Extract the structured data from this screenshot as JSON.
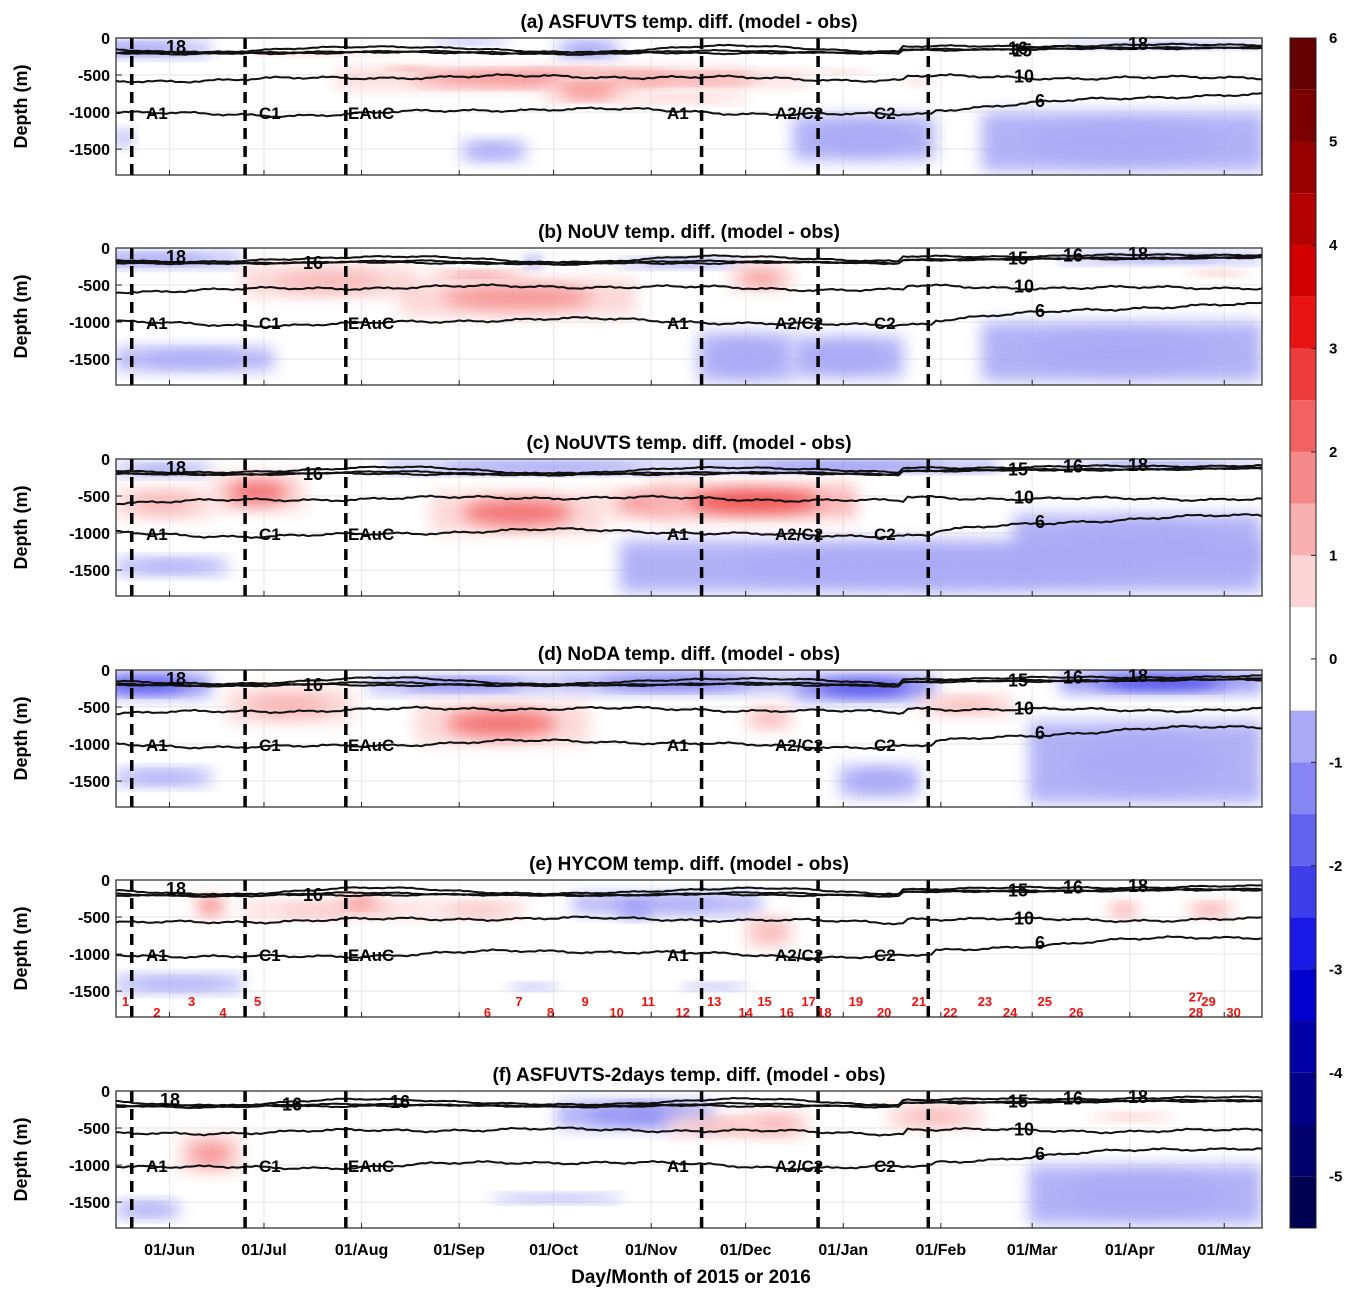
{
  "chart_data": {
    "type": "heatmap",
    "xlabel": "Day/Month of 2015 or 2016",
    "x_ticks": [
      "01/Jun",
      "01/Jul",
      "01/Aug",
      "01/Sep",
      "01/Oct",
      "01/Nov",
      "01/Dec",
      "01/Jan",
      "01/Feb",
      "01/Mar",
      "01/Apr",
      "01/May"
    ],
    "y_ticks": [
      "0",
      "-500",
      "-1000",
      "-1500"
    ],
    "ylabel": "Depth (m)",
    "ylim": [
      -1850,
      0
    ],
    "colorbar": {
      "ticks": [
        "6",
        "5",
        "4",
        "3",
        "2",
        "1",
        "0",
        "-1",
        "-2",
        "-3",
        "-4",
        "-5"
      ],
      "range": [
        -5.5,
        6
      ],
      "colors_positive": [
        "#fcd4d4",
        "#f9b0b0",
        "#f58a8a",
        "#f26262",
        "#ee3b3b",
        "#e81414",
        "#d40000",
        "#b30000",
        "#960000",
        "#7b0000",
        "#640000"
      ],
      "colors_negative": [
        "#a9a9f6",
        "#8585f3",
        "#6262ef",
        "#3e3eeb",
        "#1a1ae6",
        "#0000cc",
        "#0000a6",
        "#000088",
        "#00006d",
        "#000050"
      ]
    },
    "event_labels": [
      "A1",
      "C1",
      "EAuC",
      "A1",
      "A2/C2",
      "C2"
    ],
    "panels": [
      {
        "title": "(a) ASFUVTS temp. diff. (model - obs)",
        "contour_labels": [
          "18",
          "15",
          "16",
          "18",
          "10",
          "6"
        ],
        "warm": [
          [
            70,
            200,
            420,
            680,
            2
          ],
          [
            140,
            220,
            460,
            640,
            1.5
          ],
          [
            135,
            165,
            620,
            850,
            2
          ],
          [
            40,
            90,
            180,
            240,
            1
          ],
          [
            120,
            160,
            380,
            420,
            1.5
          ],
          [
            160,
            200,
            780,
            880,
            1
          ],
          [
            220,
            240,
            420,
            480,
            1
          ],
          [
            250,
            260,
            560,
            640,
            1
          ],
          [
            85,
            100,
            380,
            440,
            2.5
          ]
        ],
        "cool": [
          [
            -15,
            30,
            60,
            240,
            -1
          ],
          [
            140,
            160,
            60,
            260,
            -1.2
          ],
          [
            300,
            364,
            60,
            140,
            -1.5
          ],
          [
            100,
            125,
            20,
            90,
            -1
          ],
          [
            215,
            260,
            1050,
            1650,
            -0.9
          ],
          [
            275,
            365,
            1000,
            1800,
            -0.8
          ],
          [
            0,
            5,
            1250,
            1450,
            -0.8
          ],
          [
            110,
            130,
            1400,
            1650,
            -0.8
          ]
        ]
      },
      {
        "title": "(b) NoUV temp. diff. (model - obs)",
        "contour_labels": [
          "18",
          "16",
          "15",
          "16",
          "18",
          "10",
          "6"
        ],
        "warm": [
          [
            90,
            165,
            420,
            920,
            1.8
          ],
          [
            40,
            95,
            250,
            650,
            1.2
          ],
          [
            195,
            215,
            250,
            560,
            1.5
          ],
          [
            340,
            360,
            300,
            380,
            1.5
          ],
          [
            100,
            130,
            310,
            400,
            2.5
          ]
        ],
        "cool": [
          [
            -15,
            40,
            70,
            240,
            -1
          ],
          [
            130,
            135,
            110,
            270,
            -1.5
          ],
          [
            160,
            200,
            150,
            260,
            -1.1
          ],
          [
            300,
            364,
            80,
            200,
            -1.2
          ],
          [
            185,
            215,
            1150,
            1800,
            -0.9
          ],
          [
            215,
            250,
            1200,
            1750,
            -0.8
          ],
          [
            275,
            364,
            1000,
            1800,
            -0.8
          ],
          [
            0,
            50,
            1350,
            1650,
            -0.8
          ]
        ]
      },
      {
        "title": "(c) NoUVTS temp. diff. (model - obs)",
        "contour_labels": [
          "18",
          "16",
          "15",
          "16",
          "18",
          "10",
          "6"
        ],
        "warm": [
          [
            100,
            155,
            450,
            1000,
            2.2
          ],
          [
            155,
            180,
            400,
            800,
            1.5
          ],
          [
            170,
            235,
            350,
            800,
            2.5
          ],
          [
            30,
            60,
            200,
            700,
            2
          ],
          [
            0,
            30,
            400,
            800,
            1.2
          ]
        ],
        "cool": [
          [
            0,
            30,
            70,
            220,
            -1.2
          ],
          [
            85,
            185,
            40,
            180,
            -1.6
          ],
          [
            185,
            280,
            40,
            160,
            -2
          ],
          [
            300,
            364,
            40,
            110,
            -2.5
          ],
          [
            160,
            364,
            1100,
            1800,
            -0.9
          ],
          [
            285,
            364,
            750,
            1500,
            -0.9
          ],
          [
            0,
            35,
            1350,
            1550,
            -0.8
          ]
        ]
      },
      {
        "title": "(d) NoDA temp. diff. (model - obs)",
        "contour_labels": [
          "18",
          "16",
          "15",
          "16",
          "18",
          "10",
          "6"
        ],
        "warm": [
          [
            95,
            150,
            450,
            1000,
            2
          ],
          [
            35,
            75,
            250,
            700,
            1.3
          ],
          [
            255,
            285,
            350,
            600,
            1
          ],
          [
            200,
            215,
            500,
            800,
            1.2
          ]
        ],
        "cool": [
          [
            -10,
            30,
            60,
            350,
            -2
          ],
          [
            80,
            140,
            100,
            300,
            -1.5
          ],
          [
            140,
            215,
            50,
            300,
            -1.5
          ],
          [
            215,
            260,
            80,
            400,
            -2.2
          ],
          [
            300,
            364,
            40,
            300,
            -2.5
          ],
          [
            290,
            364,
            700,
            1800,
            -0.9
          ],
          [
            230,
            255,
            1300,
            1700,
            -0.8
          ],
          [
            0,
            30,
            1350,
            1550,
            -0.8
          ]
        ]
      },
      {
        "title": "(e) HYCOM temp. diff. (model - obs)",
        "contour_labels": [
          "18",
          "16",
          "15",
          "16",
          "18",
          "10",
          "6"
        ],
        "warm": [
          [
            25,
            35,
            200,
            500,
            2
          ],
          [
            40,
            100,
            300,
            500,
            1.2
          ],
          [
            70,
            85,
            200,
            400,
            2.2
          ],
          [
            100,
            130,
            300,
            500,
            1.2
          ],
          [
            200,
            215,
            500,
            900,
            1.2
          ],
          [
            265,
            275,
            80,
            120,
            1.5
          ],
          [
            340,
            355,
            300,
            500,
            1.5
          ],
          [
            315,
            325,
            300,
            500,
            1.5
          ]
        ],
        "cool": [
          [
            145,
            205,
            200,
            450,
            -0.8
          ],
          [
            160,
            170,
            300,
            500,
            -1.2
          ],
          [
            0,
            40,
            1300,
            1500,
            -0.8
          ],
          [
            125,
            140,
            1400,
            1480,
            -0.8
          ],
          [
            180,
            200,
            1400,
            1480,
            -0.8
          ]
        ],
        "station_numbers": [
          "1",
          "2",
          "3",
          "4",
          "5",
          "6",
          "7",
          "8",
          "9",
          "10",
          "11",
          "12",
          "13",
          "14",
          "15",
          "16",
          "17",
          "18",
          "19",
          "20",
          "21",
          "22",
          "23",
          "24",
          "25",
          "26",
          "27",
          "28",
          "29",
          "30"
        ]
      },
      {
        "title": "(f) ASFUVTS-2days temp. diff. (model - obs)",
        "contour_labels": [
          "18",
          "16",
          "16",
          "15",
          "16",
          "18",
          "10",
          "6"
        ],
        "warm": [
          [
            20,
            40,
            600,
            1100,
            1.5
          ],
          [
            175,
            215,
            350,
            600,
            1.2
          ],
          [
            200,
            220,
            300,
            600,
            1.2
          ],
          [
            245,
            275,
            200,
            500,
            1
          ],
          [
            310,
            335,
            300,
            400,
            1.3
          ]
        ],
        "cool": [
          [
            140,
            190,
            150,
            500,
            -1
          ],
          [
            160,
            175,
            200,
            400,
            -1.2
          ],
          [
            290,
            364,
            1000,
            1800,
            -0.9
          ],
          [
            0,
            20,
            1500,
            1700,
            -0.8
          ],
          [
            120,
            160,
            1400,
            1500,
            -0.8
          ]
        ]
      }
    ]
  }
}
